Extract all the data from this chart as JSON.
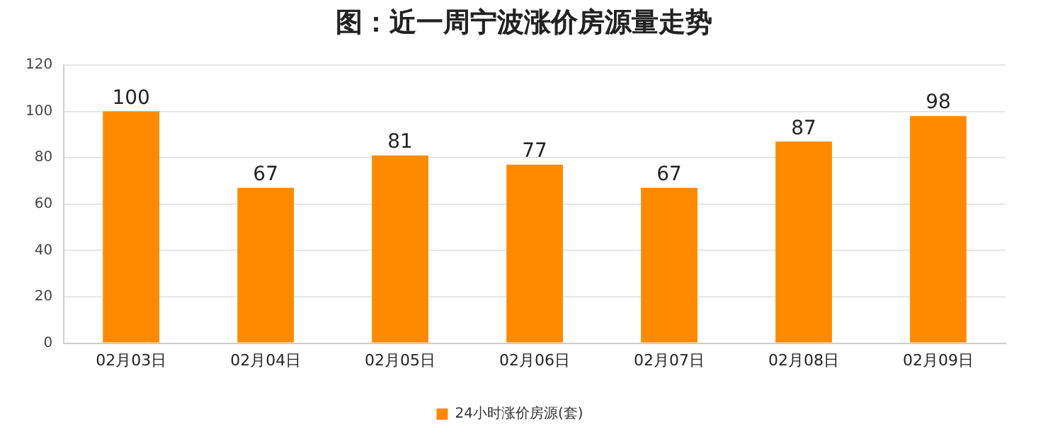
{
  "chart_data": {
    "type": "bar",
    "title": "图：近一周宁波涨价房源量走势",
    "categories": [
      "02月03日",
      "02月04日",
      "02月05日",
      "02月06日",
      "02月07日",
      "02月08日",
      "02月09日"
    ],
    "series": [
      {
        "name": "24小时涨价房源(套)",
        "color": "#ff8a00",
        "values": [
          100,
          67,
          81,
          77,
          67,
          87,
          98
        ]
      }
    ],
    "ylim": [
      0,
      120
    ],
    "yticks": [
      0,
      20,
      40,
      60,
      80,
      100,
      120
    ],
    "grid": "y",
    "legend": "bottom",
    "data_labels": true
  }
}
